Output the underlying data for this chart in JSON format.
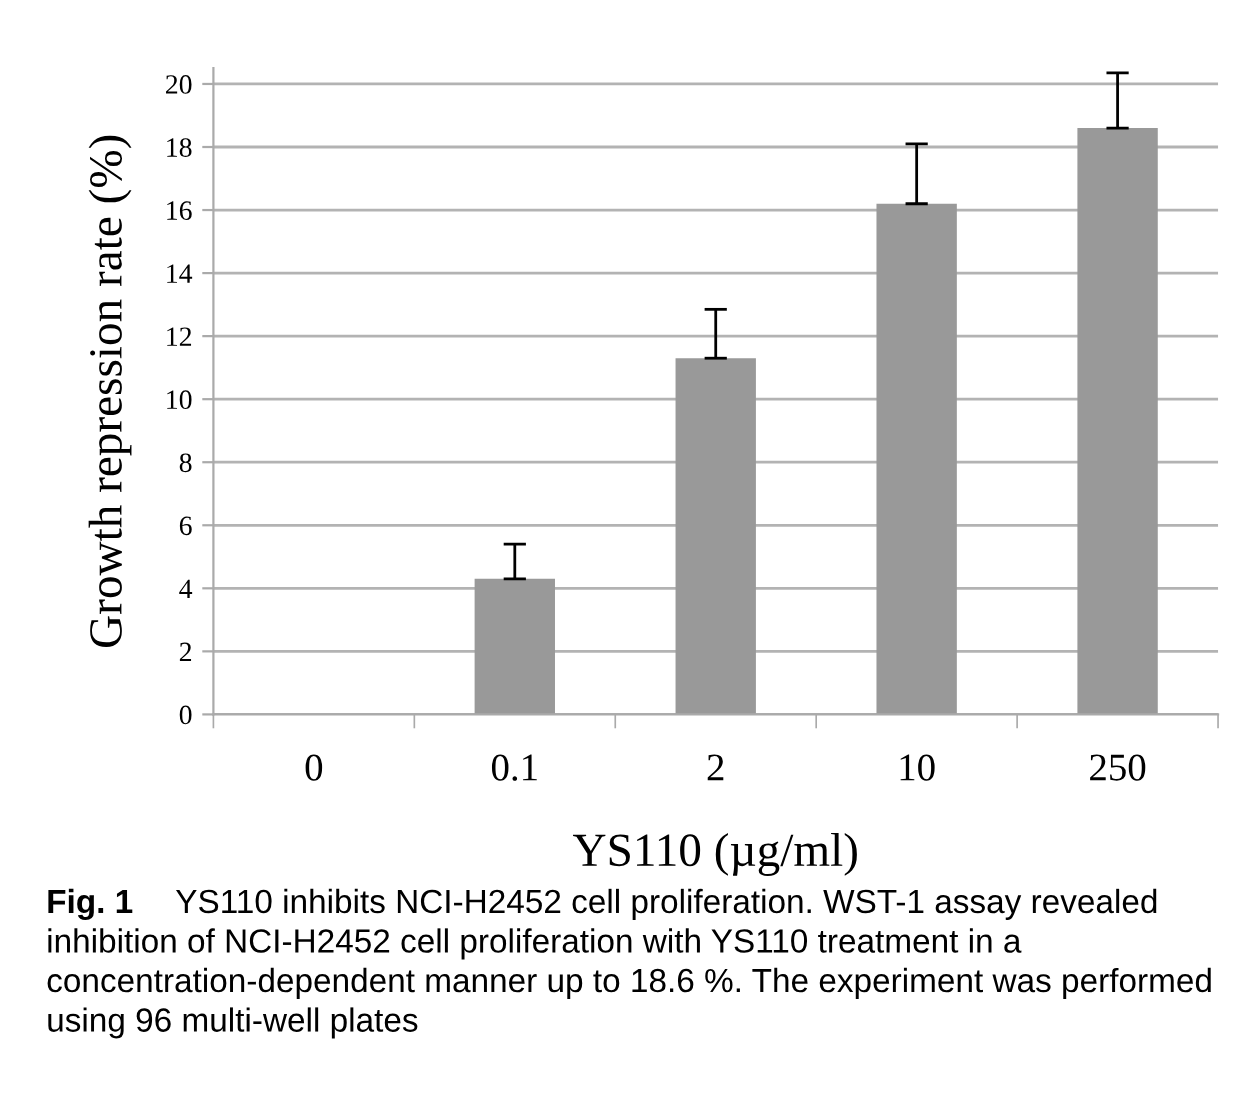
{
  "chart_data": {
    "type": "bar",
    "xlabel": "YS110 (µg/ml)",
    "ylabel": "Growth repression rate (%)",
    "categories": [
      "0",
      "0.1",
      "2",
      "10",
      "250"
    ],
    "values": [
      0,
      4.3,
      11.3,
      16.2,
      18.6
    ],
    "errors": [
      null,
      [
        4.3,
        5.4
      ],
      [
        11.3,
        12.85
      ],
      [
        16.2,
        18.1
      ],
      [
        18.6,
        20.35
      ]
    ],
    "color": "#999999",
    "ylim": [
      0,
      20.5
    ],
    "yticks": [
      0,
      2,
      4,
      6,
      8,
      10,
      12,
      14,
      16,
      18,
      20
    ],
    "grid": "y",
    "legend": false,
    "annotations": [
      "Fig. 1",
      "YS110 inhibits NCI-H2452 cell proliferation. WST-1 assay revealed inhibition of NCI-H2452 cell proliferation with YS110 treatment in a concentration-dependent manner up to 18.6 %. The experiment was performed using 96 multi-well plates"
    ]
  }
}
